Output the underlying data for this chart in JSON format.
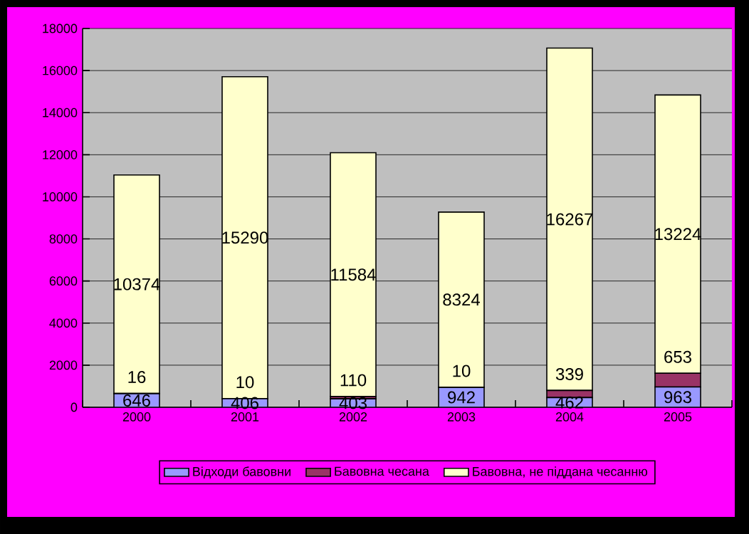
{
  "chart_data": {
    "type": "bar",
    "stacked": true,
    "categories": [
      "2000",
      "2001",
      "2002",
      "2003",
      "2004",
      "2005"
    ],
    "series": [
      {
        "name": "Відходи бавовни",
        "color": "#9999ff",
        "values": [
          646,
          406,
          403,
          942,
          462,
          963
        ]
      },
      {
        "name": "Бавовна чесана",
        "color": "#993366",
        "values": [
          16,
          10,
          110,
          10,
          339,
          653
        ]
      },
      {
        "name": "Бавовна, не піддана чесанню",
        "color": "#ffffcc",
        "values": [
          10374,
          15290,
          11584,
          8324,
          16267,
          13224
        ]
      }
    ],
    "ylim": [
      0,
      18000
    ],
    "yticks": [
      0,
      2000,
      4000,
      6000,
      8000,
      10000,
      12000,
      14000,
      16000,
      18000
    ],
    "grid": "y",
    "legend": "bottom",
    "data_labels": true
  }
}
